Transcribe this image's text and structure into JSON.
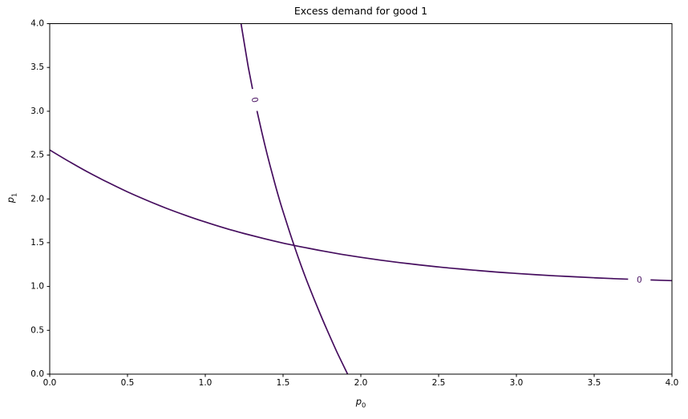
{
  "figure": {
    "title": "Excess demand for good 1"
  },
  "axes": {
    "xlabel_base": "p",
    "xlabel_sub": "0",
    "ylabel_base": "p",
    "ylabel_sub": "1"
  },
  "chart_data": {
    "type": "line",
    "subtype": "zero-contour-lines",
    "title": "Excess demand for good 1",
    "xlabel": "p_0",
    "ylabel": "p_1",
    "xlim": [
      0,
      4
    ],
    "ylim": [
      0,
      4
    ],
    "grid": false,
    "legend": "none",
    "axis_color": "#000000",
    "line_color": "#450d5e",
    "xtick_labels": [
      "0.0",
      "0.5",
      "1.0",
      "1.5",
      "2.0",
      "2.5",
      "3.0",
      "3.5",
      "4.0"
    ],
    "ytick_labels": [
      "0.0",
      "0.5",
      "1.0",
      "1.5",
      "2.0",
      "2.5",
      "3.0",
      "3.5",
      "4.0"
    ],
    "series": [
      {
        "name": "zero-contour-flat-branch",
        "label": "0",
        "label_at": [
          3.79,
          1.078
        ],
        "label_rotation_deg": 2,
        "points": [
          [
            0.0,
            2.558
          ],
          [
            0.125,
            2.426
          ],
          [
            0.25,
            2.301
          ],
          [
            0.375,
            2.187
          ],
          [
            0.5,
            2.08
          ],
          [
            0.625,
            1.983
          ],
          [
            0.75,
            1.893
          ],
          [
            0.875,
            1.811
          ],
          [
            1.0,
            1.736
          ],
          [
            1.125,
            1.667
          ],
          [
            1.25,
            1.605
          ],
          [
            1.375,
            1.548
          ],
          [
            1.5,
            1.496
          ],
          [
            1.625,
            1.45
          ],
          [
            1.75,
            1.407
          ],
          [
            1.875,
            1.368
          ],
          [
            2.0,
            1.333
          ],
          [
            2.125,
            1.301
          ],
          [
            2.25,
            1.273
          ],
          [
            2.375,
            1.247
          ],
          [
            2.5,
            1.223
          ],
          [
            2.625,
            1.202
          ],
          [
            2.75,
            1.183
          ],
          [
            2.875,
            1.165
          ],
          [
            3.0,
            1.149
          ],
          [
            3.125,
            1.135
          ],
          [
            3.25,
            1.122
          ],
          [
            3.375,
            1.111
          ],
          [
            3.5,
            1.1
          ],
          [
            3.625,
            1.09
          ],
          [
            3.75,
            1.082
          ],
          [
            3.875,
            1.074
          ],
          [
            4.0,
            1.067
          ]
        ]
      },
      {
        "name": "zero-contour-steep-branch",
        "label": "0",
        "label_at": [
          1.318,
          3.13
        ],
        "label_rotation_deg": 78,
        "points": [
          [
            1.23,
            4.0
          ],
          [
            1.253,
            3.75
          ],
          [
            1.277,
            3.5
          ],
          [
            1.304,
            3.25
          ],
          [
            1.333,
            3.0
          ],
          [
            1.365,
            2.75
          ],
          [
            1.399,
            2.5
          ],
          [
            1.436,
            2.25
          ],
          [
            1.475,
            2.0
          ],
          [
            1.519,
            1.75
          ],
          [
            1.565,
            1.5
          ],
          [
            1.614,
            1.25
          ],
          [
            1.667,
            1.0
          ],
          [
            1.724,
            0.75
          ],
          [
            1.784,
            0.5
          ],
          [
            1.847,
            0.25
          ],
          [
            1.915,
            0.0
          ]
        ]
      }
    ]
  }
}
